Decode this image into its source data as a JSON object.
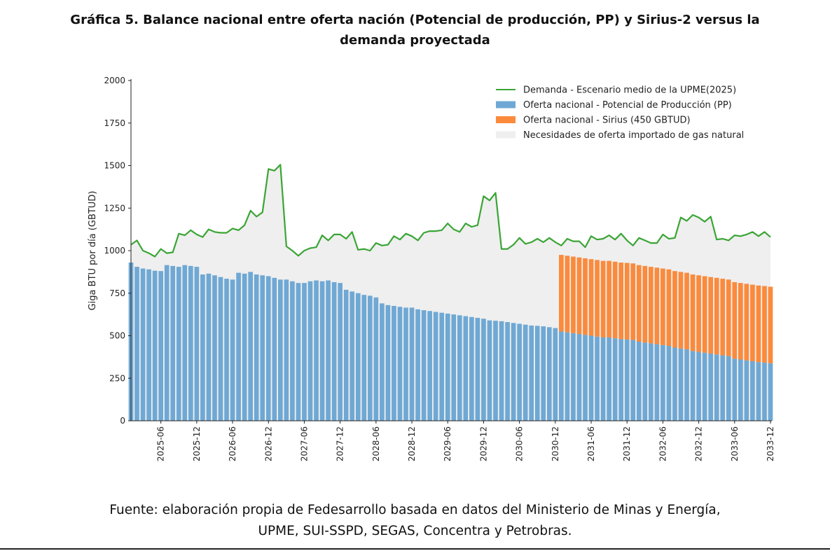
{
  "title_lines": [
    "Gráfica 5. Balance nacional entre oferta nación (Potencial de producción, PP) y Sirius-2 versus la",
    "demanda proyectada"
  ],
  "source_lines": [
    "Fuente: elaboración propia de Fedesarrollo basada en datos del Ministerio de Minas y Energía,",
    "UPME, SUI-SSPD, SEGAS, Concentra y Petrobras."
  ],
  "chart_data": {
    "type": "bar",
    "ylabel": "Giga BTU por día (GBTUD)",
    "xlabel": "",
    "ylim": [
      0,
      2000
    ],
    "yticks": [
      0,
      250,
      500,
      750,
      1000,
      1250,
      1500,
      1750,
      2000
    ],
    "x_start": "2025-01",
    "x_end": "2033-12",
    "xticks": [
      "2025-06",
      "2025-12",
      "2026-06",
      "2026-12",
      "2027-06",
      "2027-12",
      "2028-06",
      "2028-12",
      "2029-06",
      "2029-12",
      "2030-06",
      "2030-12",
      "2031-06",
      "2031-12",
      "2032-06",
      "2032-12",
      "2033-06",
      "2033-12"
    ],
    "legend_position": "top-right",
    "colors": {
      "demand": "#3aa535",
      "pp": "#6fa8d4",
      "sirius": "#fb8a3c",
      "imports": "#efefef"
    },
    "series": [
      {
        "name": "Demanda - Escenario medio de la UPME(2025)",
        "kind": "line",
        "values": [
          1035,
          1060,
          1000,
          985,
          965,
          1010,
          985,
          990,
          1100,
          1090,
          1120,
          1095,
          1080,
          1125,
          1110,
          1105,
          1105,
          1130,
          1120,
          1150,
          1235,
          1200,
          1225,
          1480,
          1470,
          1505,
          1025,
          1000,
          970,
          1000,
          1015,
          1020,
          1090,
          1060,
          1095,
          1095,
          1070,
          1110,
          1005,
          1010,
          1000,
          1045,
          1030,
          1035,
          1085,
          1065,
          1100,
          1085,
          1060,
          1105,
          1115,
          1115,
          1120,
          1160,
          1125,
          1110,
          1160,
          1140,
          1150,
          1320,
          1295,
          1340,
          1010,
          1010,
          1035,
          1075,
          1040,
          1050,
          1070,
          1050,
          1075,
          1050,
          1030,
          1070,
          1055,
          1055,
          1020,
          1085,
          1065,
          1070,
          1090,
          1065,
          1100,
          1060,
          1030,
          1075,
          1060,
          1045,
          1045,
          1095,
          1070,
          1075,
          1195,
          1175,
          1210,
          1195,
          1170,
          1200,
          1065,
          1070,
          1060,
          1090,
          1085,
          1095,
          1110,
          1085,
          1110,
          1080
        ]
      },
      {
        "name": "Oferta nacional - Potencial de Producción (PP)",
        "kind": "bar",
        "values": [
          930,
          905,
          895,
          890,
          882,
          880,
          915,
          910,
          905,
          915,
          910,
          905,
          860,
          865,
          855,
          845,
          835,
          830,
          870,
          865,
          875,
          860,
          855,
          850,
          840,
          830,
          830,
          820,
          810,
          810,
          820,
          825,
          820,
          825,
          815,
          810,
          770,
          760,
          750,
          740,
          735,
          725,
          690,
          680,
          675,
          670,
          665,
          665,
          655,
          650,
          645,
          640,
          635,
          630,
          625,
          620,
          615,
          610,
          605,
          600,
          590,
          588,
          585,
          580,
          575,
          570,
          565,
          560,
          558,
          555,
          550,
          545,
          525,
          520,
          515,
          510,
          505,
          500,
          495,
          490,
          490,
          485,
          480,
          478,
          475,
          465,
          460,
          455,
          450,
          445,
          440,
          430,
          425,
          420,
          410,
          405,
          400,
          395,
          390,
          385,
          380,
          365,
          360,
          355,
          350,
          345,
          342,
          338
        ]
      },
      {
        "name": "Oferta nacional - Sirius (450 GBTUD)",
        "kind": "bar-stacked",
        "start": "2031-01",
        "value": 450
      },
      {
        "name": "Necesidades de oferta importado de gas natural",
        "kind": "area-fill"
      }
    ]
  }
}
